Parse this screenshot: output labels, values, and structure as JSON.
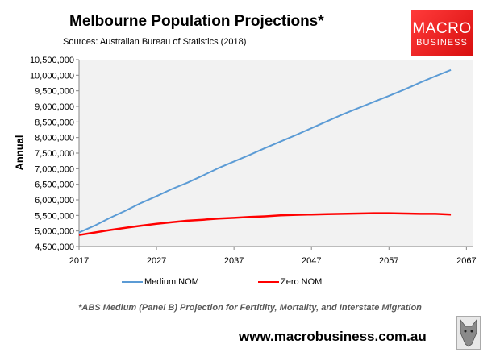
{
  "header": {
    "logo_line1": "MACRO",
    "logo_line2": "BUSINESS",
    "url": "www.macrobusiness.com.au"
  },
  "colors": {
    "medium": "#5b9bd5",
    "zero": "#ff0000",
    "plot_bg": "#f2f2f2",
    "logo": "#e81c1c"
  },
  "chart_data": {
    "type": "line",
    "title": "Melbourne Population Projections*",
    "subtitle": "Sources: Australian Bureau of Statistics (2018)",
    "ylabel": "Annual",
    "xlabel": "",
    "xlim": [
      2017,
      2068
    ],
    "ylim": [
      4500000,
      10500000
    ],
    "xticks": [
      2017,
      2027,
      2037,
      2047,
      2057,
      2067
    ],
    "xtick_labels": [
      "2017",
      "2027",
      "2037",
      "2047",
      "2057",
      "2067"
    ],
    "yticks": [
      4500000,
      5000000,
      5500000,
      6000000,
      6500000,
      7000000,
      7500000,
      8000000,
      8500000,
      9000000,
      9500000,
      10000000,
      10500000
    ],
    "ytick_labels": [
      "4,500,000",
      "5,000,000",
      "5,500,000",
      "6,000,000",
      "6,500,000",
      "7,000,000",
      "7,500,000",
      "8,000,000",
      "8,500,000",
      "9,000,000",
      "9,500,000",
      "10,000,000",
      "10,500,000"
    ],
    "grid": false,
    "legend": "bottom",
    "x": [
      2017,
      2019,
      2021,
      2023,
      2025,
      2027,
      2029,
      2031,
      2033,
      2035,
      2037,
      2039,
      2041,
      2043,
      2045,
      2047,
      2049,
      2051,
      2053,
      2055,
      2057,
      2059,
      2061,
      2063,
      2065
    ],
    "series": [
      {
        "name": "Medium NOM",
        "color": "#5b9bd5",
        "values": [
          4950000,
          5170000,
          5420000,
          5650000,
          5900000,
          6120000,
          6350000,
          6550000,
          6780000,
          7020000,
          7230000,
          7440000,
          7660000,
          7870000,
          8080000,
          8300000,
          8520000,
          8740000,
          8940000,
          9140000,
          9340000,
          9540000,
          9760000,
          9970000,
          10170000
        ]
      },
      {
        "name": "Zero NOM",
        "color": "#ff0000",
        "values": [
          4870000,
          4950000,
          5030000,
          5100000,
          5170000,
          5230000,
          5280000,
          5330000,
          5360000,
          5400000,
          5420000,
          5450000,
          5470000,
          5500000,
          5520000,
          5530000,
          5540000,
          5550000,
          5560000,
          5570000,
          5570000,
          5560000,
          5550000,
          5550000,
          5530000
        ]
      }
    ],
    "footnote": "*ABS Medium (Panel B) Projection for Fertitlity, Mortality, and Interstate Migration"
  }
}
